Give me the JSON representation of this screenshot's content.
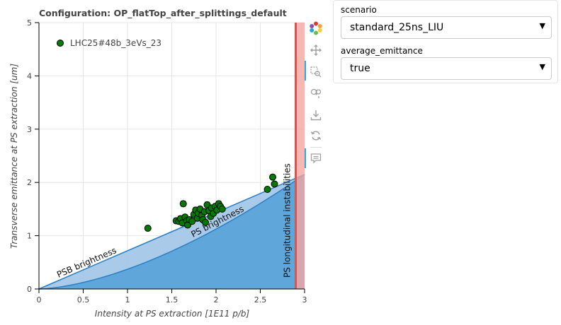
{
  "title": "Configuration: OP_flatTop_after_splittings_default",
  "toolbar": {
    "logo_icon": "bokeh-logo-icon",
    "tools": [
      "pan-icon",
      "box-zoom-icon",
      "wheel-zoom-icon",
      "save-icon",
      "reset-icon",
      "hover-icon"
    ]
  },
  "widgets": {
    "scenario": {
      "label": "scenario",
      "value": "standard_25ns_LIU"
    },
    "average_emittance": {
      "label": "average_emittance",
      "value": "true"
    }
  },
  "chart_data": {
    "type": "scatter",
    "title": "Configuration: OP_flatTop_after_splittings_default",
    "xlabel": "Intensity at PS extraction [1E11 p/b]",
    "ylabel": "Transverse emittance at PS extraction [um]",
    "xlim": [
      0,
      3
    ],
    "ylim": [
      0,
      5
    ],
    "x_ticks": [
      0,
      0.5,
      1,
      1.5,
      2,
      2.5,
      3
    ],
    "x_tick_labels": [
      "0",
      "0.5",
      "1",
      "1.5",
      "2",
      "2.5",
      "3"
    ],
    "y_ticks": [
      0,
      1,
      2,
      3,
      4,
      5
    ],
    "y_tick_labels": [
      "0",
      "1",
      "2",
      "3",
      "4",
      "5"
    ],
    "grid": true,
    "legend_position": "top-left",
    "series": [
      {
        "name": "LHC25#48b_3eVs_23",
        "color": "#007a00",
        "points": [
          {
            "x": 1.23,
            "y": 1.14,
            "err": 0.03
          },
          {
            "x": 1.55,
            "y": 1.28,
            "err": 0.05
          },
          {
            "x": 1.58,
            "y": 1.27,
            "err": 0.04
          },
          {
            "x": 1.6,
            "y": 1.32,
            "err": 0.05
          },
          {
            "x": 1.62,
            "y": 1.24,
            "err": 0.04
          },
          {
            "x": 1.63,
            "y": 1.6,
            "err": 0.05
          },
          {
            "x": 1.65,
            "y": 1.35,
            "err": 0.04
          },
          {
            "x": 1.67,
            "y": 1.28,
            "err": 0.05
          },
          {
            "x": 1.68,
            "y": 1.2,
            "err": 0.04
          },
          {
            "x": 1.7,
            "y": 1.3,
            "err": 0.04
          },
          {
            "x": 1.73,
            "y": 1.27,
            "err": 0.04
          },
          {
            "x": 1.75,
            "y": 1.4,
            "err": 0.04
          },
          {
            "x": 1.77,
            "y": 1.48,
            "err": 0.05
          },
          {
            "x": 1.79,
            "y": 1.33,
            "err": 0.04
          },
          {
            "x": 1.8,
            "y": 1.42,
            "err": 0.04
          },
          {
            "x": 1.82,
            "y": 1.5,
            "err": 0.04
          },
          {
            "x": 1.84,
            "y": 1.38,
            "err": 0.04
          },
          {
            "x": 1.85,
            "y": 1.3,
            "err": 0.04
          },
          {
            "x": 1.87,
            "y": 1.45,
            "err": 0.04
          },
          {
            "x": 1.88,
            "y": 1.25,
            "err": 0.04
          },
          {
            "x": 1.9,
            "y": 1.58,
            "err": 0.05
          },
          {
            "x": 1.92,
            "y": 1.47,
            "err": 0.04
          },
          {
            "x": 1.94,
            "y": 1.36,
            "err": 0.04
          },
          {
            "x": 1.95,
            "y": 1.52,
            "err": 0.04
          },
          {
            "x": 1.97,
            "y": 1.42,
            "err": 0.04
          },
          {
            "x": 1.99,
            "y": 1.55,
            "err": 0.04
          },
          {
            "x": 2.01,
            "y": 1.48,
            "err": 0.04
          },
          {
            "x": 2.03,
            "y": 1.6,
            "err": 0.05
          },
          {
            "x": 2.05,
            "y": 1.55,
            "err": 0.04
          },
          {
            "x": 2.07,
            "y": 1.5,
            "err": 0.04
          },
          {
            "x": 2.58,
            "y": 1.87,
            "err": 0.03
          },
          {
            "x": 2.64,
            "y": 2.1,
            "err": 0.04
          },
          {
            "x": 2.66,
            "y": 1.97,
            "err": 0.04
          }
        ]
      }
    ],
    "regions": {
      "psb_brightness": {
        "label": "PSB brightness",
        "slope": 0.717,
        "color": "#a4c8e8"
      },
      "ps_brightness": {
        "label": "PS brightness",
        "exponent": 1.6,
        "color": "#5ba3da"
      },
      "ps_longitudinal": {
        "label": "PS longitudinal instabilities",
        "x_start": 2.9,
        "x_end": 3.0,
        "color": "#f4a6a0",
        "line_color": "#d9534f"
      }
    }
  }
}
